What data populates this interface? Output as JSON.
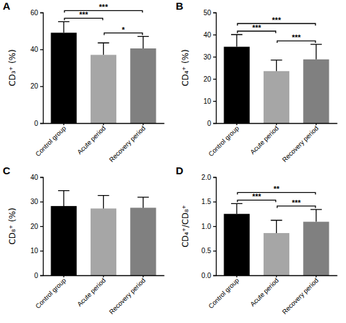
{
  "chart_data": [
    {
      "type": "bar",
      "title": "A",
      "y_label": "CD₃⁺ (%)",
      "categories": [
        "Control group",
        "Acute period",
        "Recovery period"
      ],
      "values": [
        49,
        37,
        40.5
      ],
      "errors": [
        6,
        6.5,
        6.5
      ],
      "colors": [
        "#000000",
        "#a6a6a6",
        "#808080"
      ],
      "ylim": [
        0,
        60
      ],
      "yticks": [
        0,
        20,
        40,
        60
      ],
      "comparisons": [
        {
          "groups": [
            "Control group",
            "Acute period"
          ],
          "label": "***"
        },
        {
          "groups": [
            "Control group",
            "Recovery period"
          ],
          "label": "***"
        },
        {
          "groups": [
            "Acute period",
            "Recovery period"
          ],
          "label": "*"
        }
      ]
    },
    {
      "type": "bar",
      "title": "B",
      "y_label": "CD₄⁺ (%)",
      "categories": [
        "Control group",
        "Acute period",
        "Recovery period"
      ],
      "values": [
        34.5,
        23.5,
        28.8
      ],
      "errors": [
        5.5,
        5,
        6.8
      ],
      "colors": [
        "#000000",
        "#a6a6a6",
        "#808080"
      ],
      "ylim": [
        0,
        50
      ],
      "yticks": [
        0,
        10,
        20,
        30,
        40,
        50
      ],
      "comparisons": [
        {
          "groups": [
            "Control group",
            "Acute period"
          ],
          "label": "***"
        },
        {
          "groups": [
            "Control group",
            "Recovery period"
          ],
          "label": "***"
        },
        {
          "groups": [
            "Acute period",
            "Recovery period"
          ],
          "label": "***"
        }
      ]
    },
    {
      "type": "bar",
      "title": "C",
      "y_label": "CD₈⁺ (%)",
      "categories": [
        "Control group",
        "Acute period",
        "Recovery period"
      ],
      "values": [
        28.2,
        27.2,
        27.5
      ],
      "errors": [
        6.3,
        5.3,
        4.3
      ],
      "colors": [
        "#000000",
        "#a6a6a6",
        "#808080"
      ],
      "ylim": [
        0,
        40
      ],
      "yticks": [
        0,
        10,
        20,
        30,
        40
      ]
    },
    {
      "type": "bar",
      "title": "D",
      "y_label": "CD₄⁺/CD₈⁺",
      "categories": [
        "Control group",
        "Acute period",
        "Recovery period"
      ],
      "values": [
        1.25,
        0.86,
        1.09
      ],
      "errors": [
        0.21,
        0.26,
        0.25
      ],
      "colors": [
        "#000000",
        "#a6a6a6",
        "#808080"
      ],
      "ylim": [
        0,
        2
      ],
      "yticks": [
        {
          "value": 0,
          "label": "0.0"
        },
        0.5,
        {
          "value": 1,
          "label": "1.0"
        },
        1.5,
        {
          "value": 2,
          "label": "2.0"
        }
      ],
      "comparisons": [
        {
          "groups": [
            "Control group",
            "Acute period"
          ],
          "label": "***"
        },
        {
          "groups": [
            "Control group",
            "Recovery period"
          ],
          "label": "**"
        },
        {
          "groups": [
            "Acute period",
            "Recovery period"
          ],
          "label": "***"
        }
      ]
    }
  ]
}
